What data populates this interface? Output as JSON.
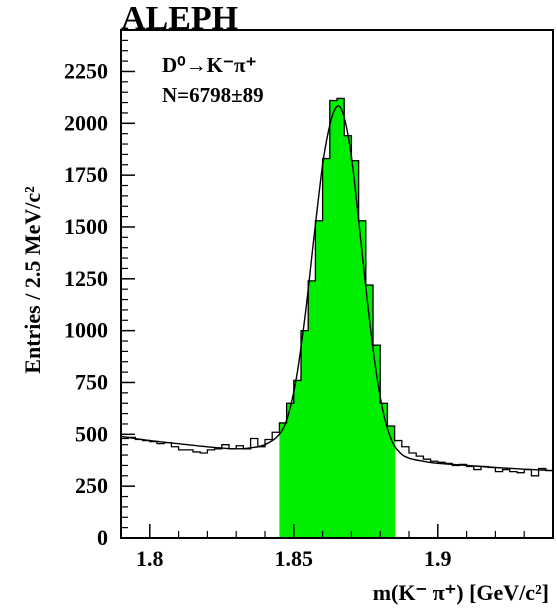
{
  "chart_data": {
    "type": "bar",
    "title": "ALEPH",
    "xlabel": "m(K⁻ π⁺) [GeV/c²]",
    "ylabel": "Entries / 2.5 MeV/c²",
    "annotation_decay": "D⁰→K⁻π⁺",
    "annotation_count": "N=6798±89",
    "xlim": [
      1.79,
      1.94
    ],
    "ylim": [
      0,
      2450
    ],
    "x_ticks": [
      1.8,
      1.85,
      1.9
    ],
    "x_tick_labels": [
      "1.8",
      "1.85",
      "1.9"
    ],
    "y_ticks": [
      0,
      250,
      500,
      750,
      1000,
      1250,
      1500,
      1750,
      2000,
      2250
    ],
    "y_tick_labels": [
      "0",
      "250",
      "500",
      "750",
      "1000",
      "1250",
      "1500",
      "1750",
      "2000",
      "2250"
    ],
    "signal_window": [
      1.845,
      1.885
    ],
    "colors": {
      "signal_fill": "#00ee00",
      "line": "#000000"
    },
    "series": [
      {
        "type": "step-histogram",
        "bin_width": 0.0025,
        "bin_low_edges": [
          1.79,
          1.7925,
          1.795,
          1.7975,
          1.8,
          1.8025,
          1.805,
          1.8075,
          1.81,
          1.8125,
          1.815,
          1.8175,
          1.82,
          1.8225,
          1.825,
          1.8275,
          1.83,
          1.8325,
          1.835,
          1.8375,
          1.84,
          1.8425,
          1.845,
          1.8475,
          1.85,
          1.8525,
          1.855,
          1.8575,
          1.86,
          1.8625,
          1.865,
          1.8675,
          1.87,
          1.8725,
          1.875,
          1.8775,
          1.88,
          1.8825,
          1.885,
          1.8875,
          1.89,
          1.8925,
          1.895,
          1.8975,
          1.9,
          1.9025,
          1.905,
          1.9075,
          1.91,
          1.9125,
          1.915,
          1.9175,
          1.92,
          1.9225,
          1.925,
          1.9275,
          1.93,
          1.9325,
          1.935,
          1.9375
        ],
        "values": [
          480,
          485,
          475,
          470,
          465,
          455,
          460,
          440,
          425,
          425,
          415,
          410,
          425,
          430,
          450,
          430,
          445,
          430,
          480,
          440,
          475,
          510,
          555,
          650,
          760,
          1000,
          1240,
          1530,
          1830,
          2110,
          2120,
          1940,
          1820,
          1530,
          1220,
          930,
          650,
          540,
          470,
          440,
          410,
          395,
          380,
          370,
          365,
          360,
          350,
          355,
          345,
          330,
          345,
          340,
          320,
          330,
          320,
          315,
          330,
          300,
          335,
          325
        ]
      },
      {
        "type": "line",
        "x": [
          1.79,
          1.8,
          1.81,
          1.82,
          1.83,
          1.835,
          1.84,
          1.845,
          1.848,
          1.851,
          1.854,
          1.857,
          1.86,
          1.862,
          1.864,
          1.866,
          1.868,
          1.87,
          1.872,
          1.875,
          1.878,
          1.881,
          1.884,
          1.887,
          1.89,
          1.895,
          1.9,
          1.91,
          1.92,
          1.93,
          1.94
        ],
        "y": [
          490,
          470,
          455,
          440,
          430,
          435,
          450,
          500,
          590,
          780,
          1080,
          1450,
          1800,
          1960,
          2060,
          2080,
          2000,
          1840,
          1600,
          1210,
          860,
          610,
          470,
          410,
          385,
          370,
          360,
          350,
          340,
          332,
          325
        ]
      }
    ]
  }
}
